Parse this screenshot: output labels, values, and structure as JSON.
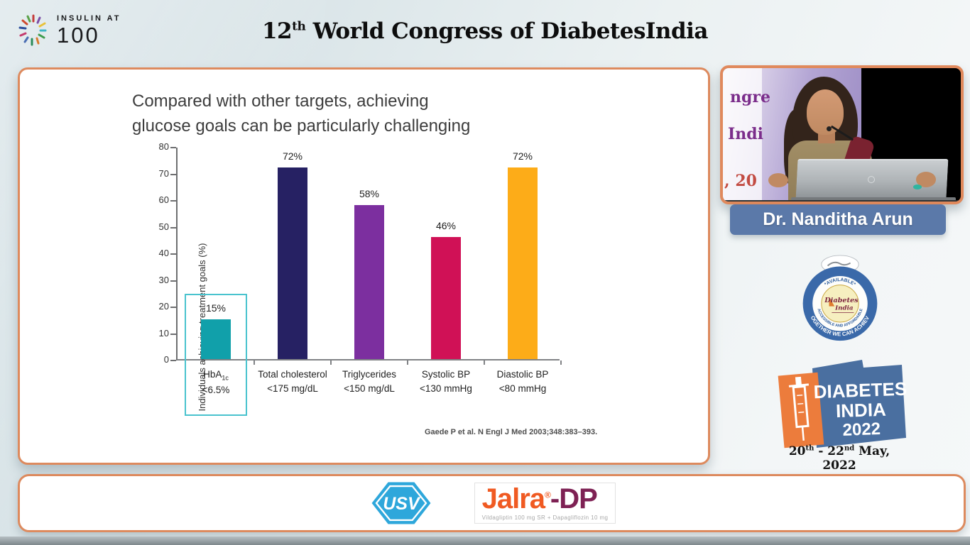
{
  "header": {
    "logo_line1": "INSULIN AT",
    "logo_line2": "100",
    "title_num": "12",
    "title_sup": "th",
    "title_rest": " World Congress of DiabetesIndia"
  },
  "slide": {
    "title_line1": "Compared with other targets, achieving",
    "title_line2": "glucose goals can be particularly challenging",
    "citation": "Gaede P et al. N Engl J Med 2003;348:383–393."
  },
  "chart_data": {
    "type": "bar",
    "title": "Compared with other targets, achieving glucose goals can be particularly challenging",
    "xlabel": "",
    "ylabel": "Individuals achieving treatment goals (%)",
    "ylim": [
      0,
      80
    ],
    "ytick_step": 10,
    "grid": false,
    "categories": [
      {
        "line1": "HbA",
        "sub": "1c",
        "line2": "<6.5%"
      },
      {
        "line1": "Total cholesterol",
        "line2": "<175 mg/dL"
      },
      {
        "line1": "Triglycerides",
        "line2": "<150 mg/dL"
      },
      {
        "line1": "Systolic BP",
        "line2": "<130 mmHg"
      },
      {
        "line1": "Diastolic BP",
        "line2": "<80 mmHg"
      }
    ],
    "values": [
      15,
      72,
      58,
      46,
      72
    ],
    "data_labels": [
      "15%",
      "72%",
      "58%",
      "46%",
      "72%"
    ],
    "bar_colors": [
      "#11a0aa",
      "#262163",
      "#7c2f9f",
      "#d01156",
      "#fdac18"
    ],
    "highlight": {
      "index": 0,
      "color": "#49c3ce"
    }
  },
  "speaker": {
    "name": "Dr. Nanditha Arun",
    "backdrop_fragments": [
      "ngre",
      "Indi",
      ", 20"
    ]
  },
  "seal": {
    "ring_text": "\"TOGETHER WE CAN ACHIEVE\"",
    "inner_top": "*AVAILABLE*",
    "inner_bottom": "*ACCESSIBLE AND AFFORDABLE*",
    "center_line1": "Diabetes",
    "center_line2": "India"
  },
  "event_logo": {
    "line1": "DIABETES",
    "line2": "INDIA",
    "line3": "2022",
    "date_parts": [
      "20",
      "th",
      " - 22",
      "nd",
      " May, 2022"
    ]
  },
  "sponsors": {
    "usv": "USV",
    "jalra_orange": "Jalra",
    "jalra_reg": "®",
    "jalra_dark": "-DP",
    "jalra_subtext": "Vildagliptin 100 mg SR + Dapagliflozin 10 mg"
  }
}
